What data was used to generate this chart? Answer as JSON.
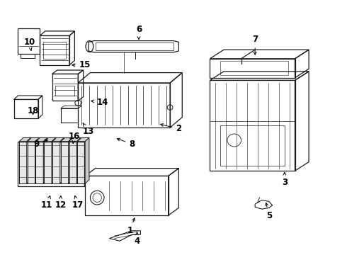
{
  "bg_color": "#ffffff",
  "line_color": "#1a1a1a",
  "label_positions": {
    "1": [
      0.375,
      0.095,
      0.39,
      0.155
    ],
    "2": [
      0.515,
      0.495,
      0.455,
      0.515
    ],
    "3": [
      0.82,
      0.285,
      0.82,
      0.335
    ],
    "4": [
      0.395,
      0.055,
      0.395,
      0.1
    ],
    "5": [
      0.775,
      0.155,
      0.765,
      0.215
    ],
    "6": [
      0.4,
      0.885,
      0.4,
      0.835
    ],
    "7": [
      0.735,
      0.845,
      0.735,
      0.775
    ],
    "8": [
      0.38,
      0.435,
      0.33,
      0.46
    ],
    "9": [
      0.105,
      0.435,
      0.145,
      0.455
    ],
    "10": [
      0.085,
      0.835,
      0.09,
      0.8
    ],
    "11": [
      0.135,
      0.195,
      0.145,
      0.235
    ],
    "12": [
      0.175,
      0.195,
      0.175,
      0.235
    ],
    "13": [
      0.255,
      0.485,
      0.235,
      0.525
    ],
    "14": [
      0.295,
      0.6,
      0.255,
      0.605
    ],
    "15": [
      0.245,
      0.745,
      0.2,
      0.745
    ],
    "16": [
      0.215,
      0.465,
      0.21,
      0.435
    ],
    "17": [
      0.225,
      0.195,
      0.215,
      0.235
    ],
    "18": [
      0.095,
      0.565,
      0.095,
      0.54
    ]
  }
}
